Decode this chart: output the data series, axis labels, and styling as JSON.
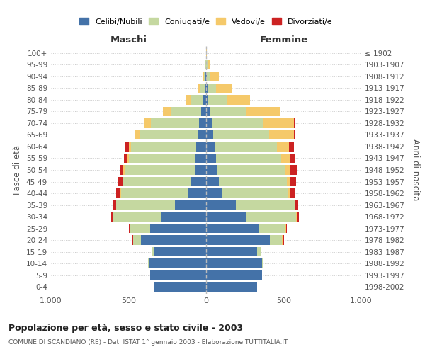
{
  "age_groups": [
    "0-4",
    "5-9",
    "10-14",
    "15-19",
    "20-24",
    "25-29",
    "30-34",
    "35-39",
    "40-44",
    "45-49",
    "50-54",
    "55-59",
    "60-64",
    "65-69",
    "70-74",
    "75-79",
    "80-84",
    "85-89",
    "90-94",
    "95-99",
    "100+"
  ],
  "birth_years": [
    "1998-2002",
    "1993-1997",
    "1988-1992",
    "1983-1987",
    "1978-1982",
    "1973-1977",
    "1968-1972",
    "1963-1967",
    "1958-1962",
    "1953-1957",
    "1948-1952",
    "1943-1947",
    "1938-1942",
    "1933-1937",
    "1928-1932",
    "1923-1927",
    "1918-1922",
    "1913-1917",
    "1908-1912",
    "1903-1907",
    "≤ 1902"
  ],
  "males": {
    "celibi": [
      340,
      360,
      370,
      340,
      420,
      360,
      290,
      200,
      120,
      95,
      75,
      70,
      65,
      55,
      45,
      30,
      20,
      10,
      5,
      2,
      2
    ],
    "coniugati": [
      0,
      2,
      5,
      10,
      50,
      130,
      310,
      380,
      430,
      440,
      450,
      430,
      420,
      370,
      310,
      200,
      80,
      30,
      10,
      2,
      0
    ],
    "vedovi": [
      0,
      0,
      0,
      0,
      2,
      2,
      2,
      2,
      3,
      5,
      8,
      10,
      15,
      30,
      40,
      50,
      30,
      10,
      2,
      0,
      0
    ],
    "divorziati": [
      0,
      0,
      0,
      0,
      5,
      5,
      10,
      20,
      25,
      25,
      25,
      20,
      25,
      5,
      0,
      0,
      0,
      0,
      0,
      0,
      0
    ]
  },
  "females": {
    "nubili": [
      330,
      360,
      360,
      330,
      410,
      340,
      260,
      190,
      100,
      80,
      70,
      65,
      55,
      45,
      35,
      25,
      15,
      10,
      5,
      2,
      2
    ],
    "coniugate": [
      0,
      2,
      5,
      20,
      80,
      170,
      320,
      380,
      430,
      440,
      440,
      420,
      400,
      360,
      330,
      230,
      120,
      55,
      20,
      5,
      0
    ],
    "vedove": [
      0,
      0,
      0,
      0,
      5,
      5,
      5,
      5,
      10,
      20,
      35,
      55,
      80,
      160,
      200,
      220,
      150,
      100,
      55,
      15,
      2
    ],
    "divorziate": [
      0,
      0,
      0,
      0,
      5,
      5,
      15,
      20,
      30,
      40,
      40,
      30,
      30,
      10,
      5,
      5,
      0,
      0,
      0,
      0,
      0
    ]
  },
  "colors": {
    "celibi": "#4472a8",
    "coniugati": "#c5d8a0",
    "vedovi": "#f5c96a",
    "divorziati": "#cc2222"
  },
  "title": "Popolazione per età, sesso e stato civile - 2003",
  "subtitle": "COMUNE DI SCANDIANO (RE) - Dati ISTAT 1° gennaio 2003 - Elaborazione TUTTITALIA.IT",
  "ylabel_left": "Fasce di età",
  "ylabel_right": "Anni di nascita",
  "xlabel_left": "Maschi",
  "xlabel_right": "Femmine",
  "xlim": 1000,
  "legend_labels": [
    "Celibi/Nubili",
    "Coniugati/e",
    "Vedovi/e",
    "Divorziati/e"
  ],
  "background_color": "#ffffff",
  "grid_color": "#cccccc"
}
